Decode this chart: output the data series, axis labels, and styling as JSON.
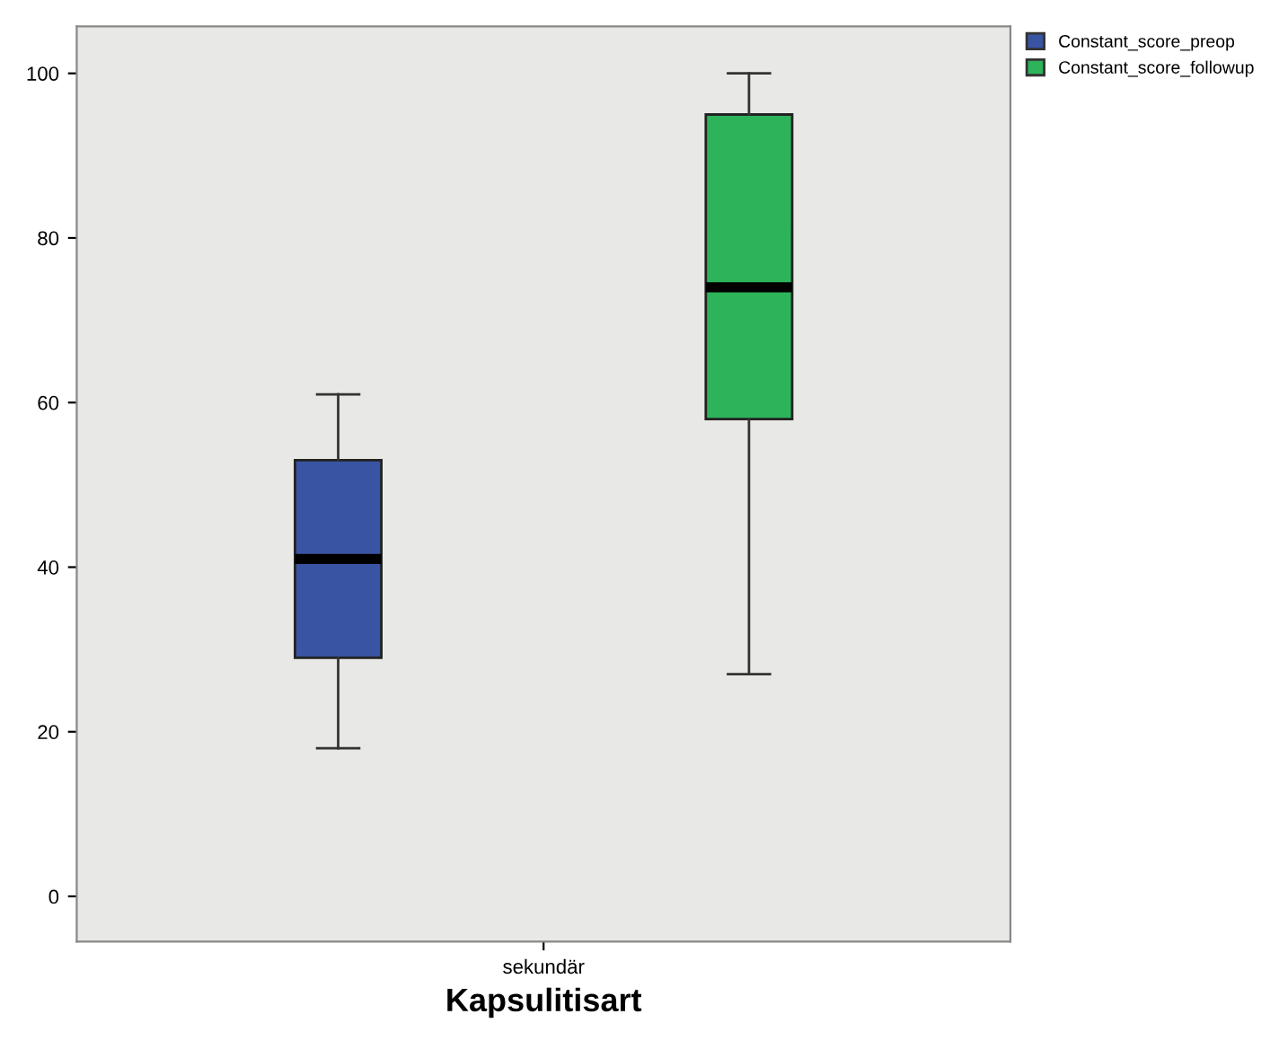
{
  "chart_data": {
    "type": "box",
    "xlabel": "Kapsulitisart",
    "categories": [
      "sekundär"
    ],
    "series": [
      {
        "name": "Constant_score_preop",
        "color": "#3a54a4",
        "boxes": [
          {
            "low": 18,
            "q1": 29,
            "median": 41,
            "q3": 53,
            "high": 61
          }
        ]
      },
      {
        "name": "Constant_score_followup",
        "color": "#2db45a",
        "boxes": [
          {
            "low": 27,
            "q1": 58,
            "median": 74,
            "q3": 95,
            "high": 100
          }
        ]
      }
    ],
    "ylim": [
      -5.5,
      105.7
    ],
    "yticks": [
      0,
      20,
      40,
      60,
      80,
      100
    ],
    "grid": false,
    "legend": "top right"
  }
}
